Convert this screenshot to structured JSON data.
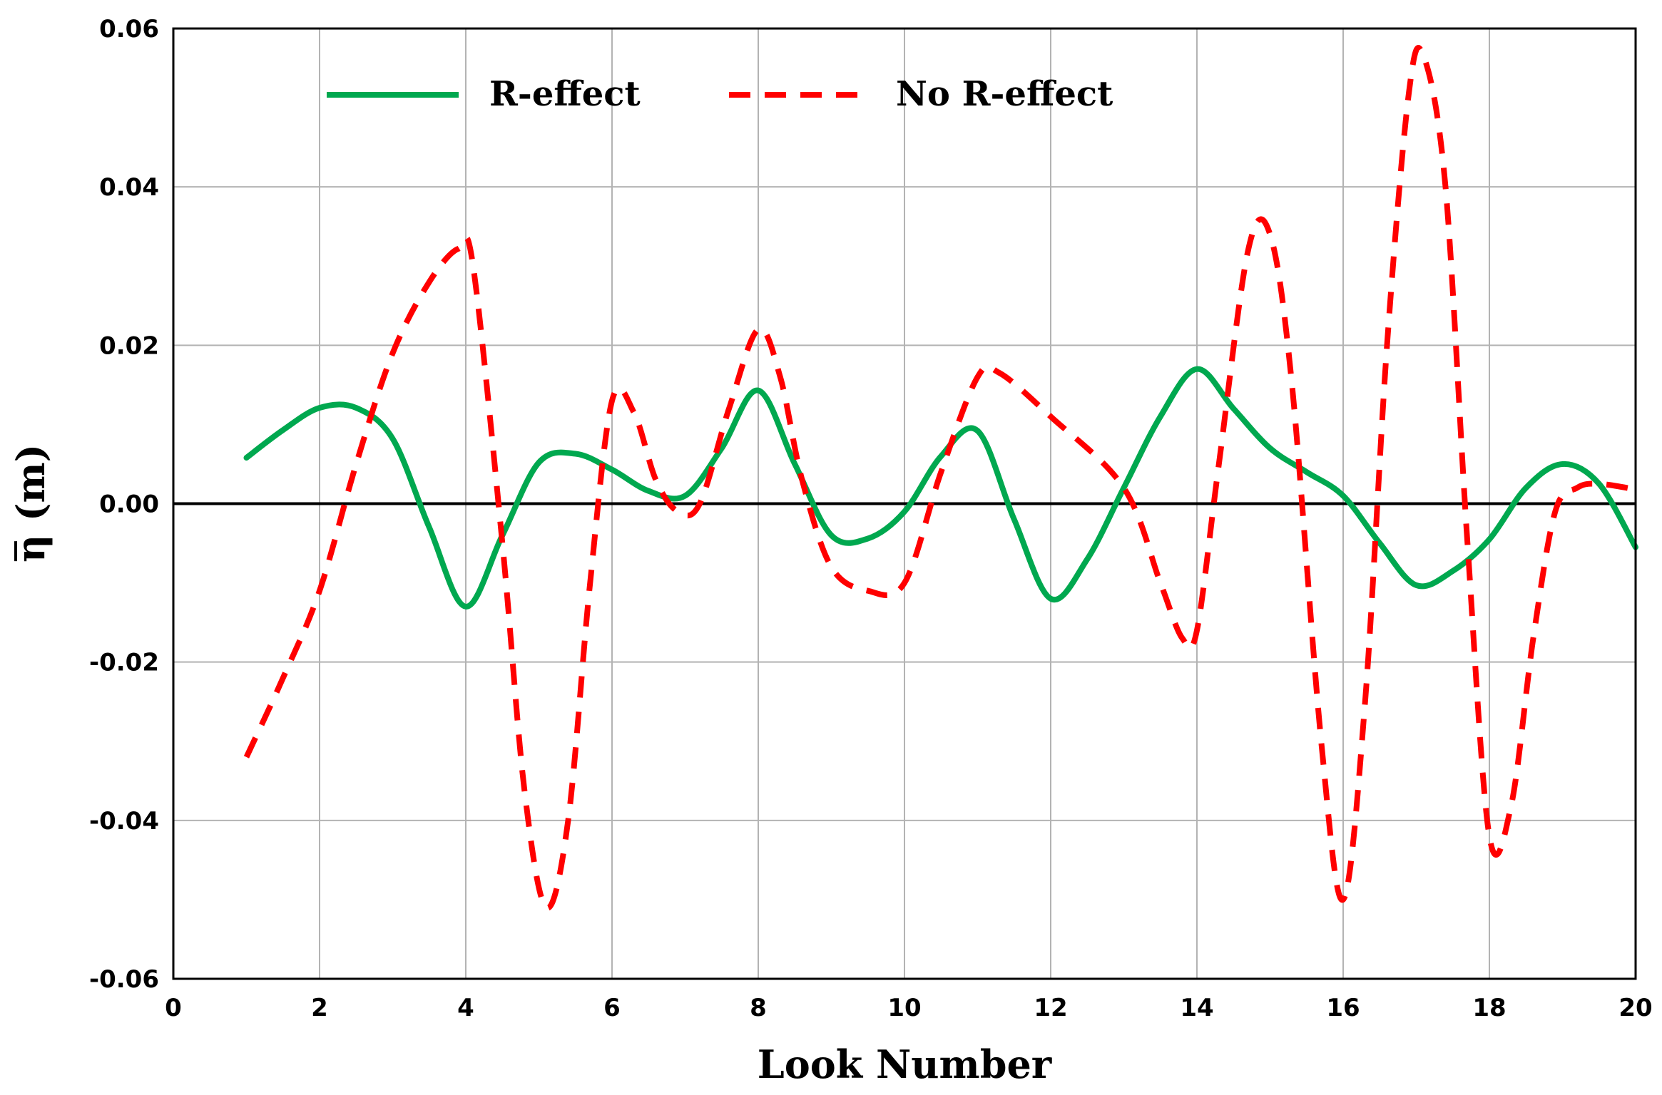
{
  "chart_data": {
    "type": "line",
    "title": "",
    "xlabel": "Look Number",
    "ylabel": "η (m)",
    "xlim": [
      0,
      20
    ],
    "ylim": [
      -0.06,
      0.06
    ],
    "x_ticks": [
      "0",
      "2",
      "4",
      "6",
      "8",
      "10",
      "12",
      "14",
      "16",
      "18",
      "20"
    ],
    "y_ticks": [
      "-0.06",
      "-0.04",
      "-0.02",
      "0.00",
      "0.02",
      "0.04",
      "0.06"
    ],
    "grid": true,
    "legend_position": "top",
    "series": [
      {
        "name": "R-effect",
        "color": "#00a84f",
        "style": "solid",
        "points": [
          [
            1.0,
            0.0058
          ],
          [
            1.5,
            0.0093
          ],
          [
            2.0,
            0.0121
          ],
          [
            2.5,
            0.0121
          ],
          [
            3.0,
            0.0082
          ],
          [
            3.5,
            -0.003
          ],
          [
            4.0,
            -0.013
          ],
          [
            4.5,
            -0.004
          ],
          [
            5.0,
            0.0052
          ],
          [
            5.5,
            0.0063
          ],
          [
            6.0,
            0.0043
          ],
          [
            6.5,
            0.0016
          ],
          [
            7.0,
            0.001
          ],
          [
            7.5,
            0.007
          ],
          [
            8.0,
            0.0143
          ],
          [
            8.5,
            0.005
          ],
          [
            9.0,
            -0.004
          ],
          [
            9.5,
            -0.0044
          ],
          [
            10.0,
            -0.001
          ],
          [
            10.5,
            0.006
          ],
          [
            11.0,
            0.0092
          ],
          [
            11.5,
            -0.002
          ],
          [
            12.0,
            -0.012
          ],
          [
            12.5,
            -0.007
          ],
          [
            13.0,
            0.002
          ],
          [
            13.5,
            0.011
          ],
          [
            14.0,
            0.017
          ],
          [
            14.5,
            0.012
          ],
          [
            15.0,
            0.007
          ],
          [
            15.5,
            0.004
          ],
          [
            16.0,
            0.001
          ],
          [
            16.5,
            -0.005
          ],
          [
            17.0,
            -0.0103
          ],
          [
            17.5,
            -0.0085
          ],
          [
            18.0,
            -0.0045
          ],
          [
            18.5,
            0.002
          ],
          [
            19.0,
            0.005
          ],
          [
            19.5,
            0.0025
          ],
          [
            20.0,
            -0.0055
          ]
        ]
      },
      {
        "name": "No R-effect",
        "color": "#ff0000",
        "style": "dashed",
        "points": [
          [
            1.0,
            -0.032
          ],
          [
            1.5,
            -0.022
          ],
          [
            2.0,
            -0.011
          ],
          [
            2.5,
            0.005
          ],
          [
            3.0,
            0.019
          ],
          [
            3.5,
            0.028
          ],
          [
            3.9,
            0.0322
          ],
          [
            4.1,
            0.03
          ],
          [
            4.5,
            -0.005
          ],
          [
            4.8,
            -0.036
          ],
          [
            5.1,
            -0.051
          ],
          [
            5.4,
            -0.04
          ],
          [
            5.7,
            -0.01
          ],
          [
            6.0,
            0.013
          ],
          [
            6.3,
            0.0115
          ],
          [
            6.6,
            0.003
          ],
          [
            6.9,
            -0.001
          ],
          [
            7.2,
            0.0
          ],
          [
            7.6,
            0.012
          ],
          [
            8.0,
            0.022
          ],
          [
            8.3,
            0.016
          ],
          [
            8.6,
            0.003
          ],
          [
            9.0,
            -0.008
          ],
          [
            9.5,
            -0.011
          ],
          [
            10.0,
            -0.01
          ],
          [
            10.5,
            0.004
          ],
          [
            11.0,
            0.016
          ],
          [
            11.3,
            0.0165
          ],
          [
            12.0,
            0.011
          ],
          [
            13.0,
            0.002
          ],
          [
            13.5,
            -0.01
          ],
          [
            13.8,
            -0.017
          ],
          [
            14.0,
            -0.016
          ],
          [
            14.3,
            0.005
          ],
          [
            14.7,
            0.032
          ],
          [
            15.0,
            0.034
          ],
          [
            15.3,
            0.015
          ],
          [
            15.7,
            -0.03
          ],
          [
            16.0,
            -0.05
          ],
          [
            16.3,
            -0.025
          ],
          [
            16.6,
            0.02
          ],
          [
            16.9,
            0.052
          ],
          [
            17.1,
            0.0565
          ],
          [
            17.4,
            0.04
          ],
          [
            17.7,
            -0.005
          ],
          [
            18.0,
            -0.042
          ],
          [
            18.3,
            -0.038
          ],
          [
            18.6,
            -0.017
          ],
          [
            18.9,
            -0.001
          ],
          [
            19.2,
            0.002
          ],
          [
            19.5,
            0.0025
          ],
          [
            20.0,
            0.0018
          ]
        ]
      }
    ]
  }
}
